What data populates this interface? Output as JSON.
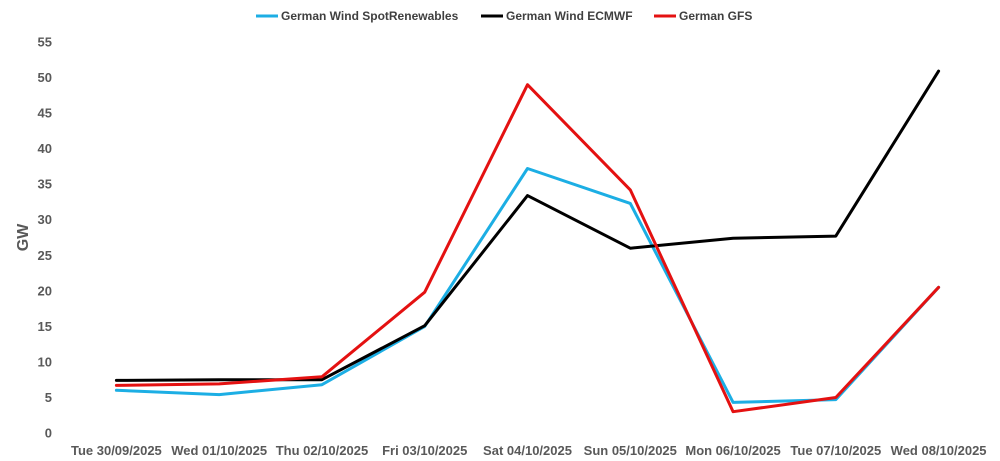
{
  "chart_data": {
    "type": "line",
    "title": "",
    "xlabel": "",
    "ylabel": "GW",
    "ylim": [
      0,
      55
    ],
    "y_ticks": [
      0,
      5,
      10,
      15,
      20,
      25,
      30,
      35,
      40,
      45,
      50,
      55
    ],
    "grid": false,
    "legend_position": "top-center",
    "categories": [
      "Tue 30/09/2025",
      "Wed 01/10/2025",
      "Thu 02/10/2025",
      "Fri 03/10/2025",
      "Sat 04/10/2025",
      "Sun 05/10/2025",
      "Mon 06/10/2025",
      "Tue 07/10/2025",
      "Wed 08/10/2025"
    ],
    "series": [
      {
        "name": "German Wind SpotRenewables",
        "color": "#1CAEE4",
        "values": [
          6.0,
          5.4,
          6.8,
          15.0,
          37.2,
          32.3,
          4.3,
          4.7,
          20.5
        ]
      },
      {
        "name": "German Wind ECMWF",
        "color": "#000000",
        "values": [
          7.4,
          7.5,
          7.5,
          15.1,
          33.4,
          26.0,
          27.4,
          27.7,
          50.9
        ]
      },
      {
        "name": "German GFS",
        "color": "#E41111",
        "values": [
          6.7,
          6.9,
          7.9,
          19.8,
          49.0,
          34.2,
          3.0,
          5.0,
          20.5
        ]
      }
    ]
  }
}
